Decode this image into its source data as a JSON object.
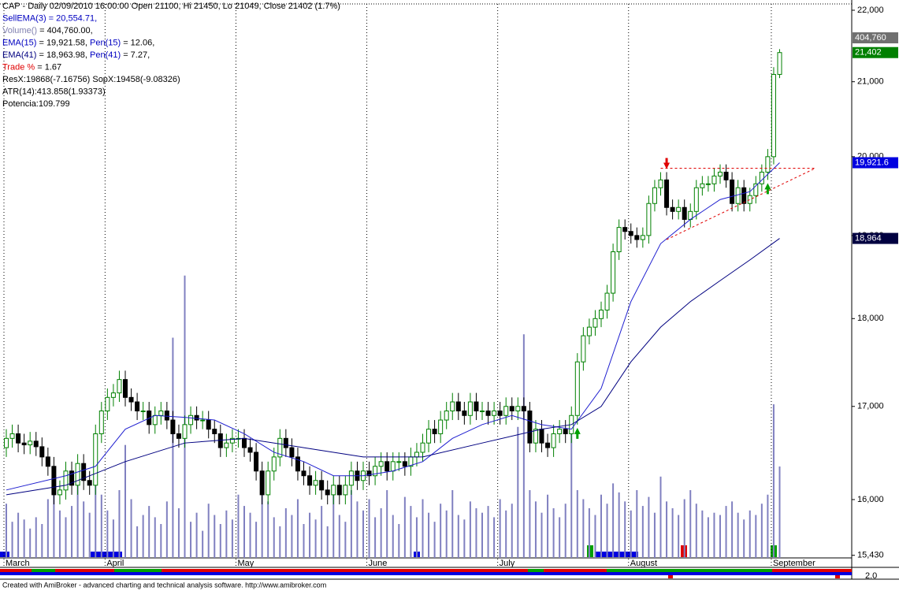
{
  "chart_data": {
    "type": "candlestick",
    "header": [
      [
        {
          "text": "CAP - Daily 02/09/2010 16:00:00 Open 21100, Hi 21450, Lo 21049, Close 21402 (1.7%)",
          "color": "#000000"
        }
      ],
      [
        {
          "text": "SellEMA(3) = 20,554.71,",
          "color": "#0000c0"
        }
      ],
      [
        {
          "text": "Volume()",
          "color": "#8080b0"
        },
        {
          "text": " = 404,760.00,",
          "color": "#000000"
        }
      ],
      [
        {
          "text": "EMA(15)",
          "color": "#0000c0"
        },
        {
          "text": " = 19,921.58, ",
          "color": "#000000"
        },
        {
          "text": "Pen(15)",
          "color": "#0000c0"
        },
        {
          "text": " = 12.06,",
          "color": "#000000"
        }
      ],
      [
        {
          "text": "EMA(41)",
          "color": "#000080"
        },
        {
          "text": " = 18,963.98, ",
          "color": "#000000"
        },
        {
          "text": "Pen(41)",
          "color": "#0000c0"
        },
        {
          "text": " = 7.27,",
          "color": "#000000"
        }
      ],
      [
        {
          "text": "Trade %",
          "color": "#e00000"
        },
        {
          "text": " = 1.67",
          "color": "#000000"
        }
      ],
      [
        {
          "text": "ResX:19868(-7.16756) SopX:19458(-9.08326)",
          "color": "#000000"
        }
      ],
      [
        {
          "text": "ATR(14):413.858(1.93373)",
          "color": "#000000"
        }
      ],
      [
        {
          "text": "Potencia:109.799",
          "color": "#000000"
        }
      ]
    ],
    "months": [
      {
        "label": "March",
        "bar": 0
      },
      {
        "label": "April",
        "bar": 17
      },
      {
        "label": "May",
        "bar": 39
      },
      {
        "label": "June",
        "bar": 61
      },
      {
        "label": "July",
        "bar": 83
      },
      {
        "label": "August",
        "bar": 105
      },
      {
        "label": "September",
        "bar": 129
      }
    ],
    "open": [
      16550,
      16650,
      16700,
      16600,
      16580,
      16620,
      16560,
      16450,
      16350,
      16050,
      16100,
      16300,
      16150,
      16380,
      16200,
      16150,
      16700,
      16950,
      17100,
      17150,
      17300,
      17100,
      17050,
      16950,
      16950,
      16800,
      16900,
      16950,
      16850,
      16700,
      16650,
      16800,
      16900,
      16850,
      16850,
      16750,
      16700,
      16550,
      16600,
      16650,
      16650,
      16550,
      16500,
      16300,
      16050,
      16300,
      16450,
      16650,
      16550,
      16450,
      16300,
      16250,
      16150,
      16200,
      16100,
      16050,
      16150,
      16050,
      16150,
      16300,
      16200,
      16300,
      16250,
      16350,
      16400,
      16300,
      16400,
      16400,
      16350,
      16450,
      16500,
      16600,
      16750,
      16700,
      16850,
      16950,
      17050,
      16950,
      16900,
      17050,
      16950,
      16950,
      16900,
      16950,
      16900,
      17000,
      16950,
      17000,
      16950,
      16600,
      16750,
      16600,
      16550,
      16700,
      16750,
      16700,
      16900,
      17500,
      17800,
      17900,
      18000,
      18100,
      18300,
      18800,
      19100,
      19050,
      19000,
      18950,
      19000,
      19400,
      19600,
      19700,
      19350,
      19300,
      19350,
      19200,
      19300,
      19600,
      19650,
      19650,
      19750,
      19800,
      19700,
      19400,
      19600,
      19400,
      19500,
      19650,
      19800,
      20000,
      21100
    ],
    "high": [
      16750,
      16800,
      16800,
      16700,
      16720,
      16720,
      16660,
      16550,
      16450,
      16200,
      16400,
      16400,
      16480,
      16480,
      16300,
      16800,
      17050,
      17200,
      17250,
      17400,
      17400,
      17200,
      17150,
      17050,
      17050,
      17000,
      17050,
      17050,
      16950,
      16800,
      16900,
      17000,
      17000,
      16950,
      16950,
      16850,
      16800,
      16700,
      16750,
      16750,
      16750,
      16650,
      16600,
      16400,
      16400,
      16550,
      16750,
      16750,
      16650,
      16550,
      16400,
      16350,
      16300,
      16300,
      16200,
      16250,
      16250,
      16250,
      16400,
      16400,
      16400,
      16400,
      16450,
      16500,
      16500,
      16500,
      16500,
      16500,
      16550,
      16600,
      16700,
      16850,
      16850,
      16950,
      17050,
      17150,
      17150,
      17050,
      17150,
      17150,
      17050,
      17050,
      17050,
      17050,
      17100,
      17100,
      17100,
      17100,
      17050,
      16850,
      16850,
      16700,
      16800,
      16850,
      16850,
      17000,
      17600,
      17900,
      18000,
      18100,
      18200,
      18400,
      18900,
      19200,
      19200,
      19150,
      19100,
      19100,
      19500,
      19700,
      19800,
      19800,
      19450,
      19450,
      19450,
      19400,
      19700,
      19750,
      19750,
      19850,
      19900,
      19900,
      19800,
      19700,
      19700,
      19600,
      19750,
      19900,
      20100,
      21200,
      21450
    ],
    "low": [
      16450,
      16550,
      16500,
      16480,
      16480,
      16460,
      16350,
      16250,
      15950,
      15950,
      16000,
      16050,
      16050,
      16100,
      16050,
      16050,
      16600,
      16850,
      17000,
      17050,
      17000,
      16950,
      16850,
      16850,
      16700,
      16700,
      16800,
      16750,
      16600,
      16550,
      16550,
      16700,
      16750,
      16750,
      16650,
      16600,
      16450,
      16450,
      16500,
      16550,
      16450,
      16400,
      16200,
      15950,
      15950,
      16200,
      16350,
      16450,
      16350,
      16200,
      16150,
      16050,
      16050,
      16000,
      15950,
      15950,
      15950,
      15950,
      16050,
      16100,
      16100,
      16150,
      16150,
      16250,
      16200,
      16200,
      16300,
      16250,
      16250,
      16350,
      16400,
      16500,
      16600,
      16600,
      16750,
      16850,
      16850,
      16800,
      16800,
      16850,
      16850,
      16800,
      16800,
      16800,
      16800,
      16850,
      16850,
      16850,
      16500,
      16500,
      16500,
      16450,
      16450,
      16600,
      16600,
      16600,
      16800,
      17400,
      17700,
      17800,
      17900,
      18000,
      18200,
      18700,
      18950,
      18900,
      18850,
      18850,
      18900,
      19300,
      19500,
      19250,
      19200,
      19200,
      19100,
      19100,
      19200,
      19500,
      19550,
      19550,
      19650,
      19600,
      19300,
      19300,
      19300,
      19300,
      19400,
      19550,
      19700,
      19900,
      21049
    ],
    "close": [
      16650,
      16700,
      16600,
      16580,
      16620,
      16560,
      16450,
      16350,
      16050,
      16100,
      16300,
      16150,
      16380,
      16200,
      16150,
      16700,
      16950,
      17100,
      17150,
      17300,
      17100,
      17050,
      16950,
      16950,
      16800,
      16900,
      16950,
      16850,
      16700,
      16650,
      16800,
      16900,
      16850,
      16850,
      16750,
      16700,
      16550,
      16600,
      16650,
      16650,
      16550,
      16500,
      16300,
      16050,
      16300,
      16450,
      16650,
      16550,
      16450,
      16300,
      16250,
      16150,
      16200,
      16100,
      16050,
      16150,
      16050,
      16150,
      16300,
      16200,
      16300,
      16250,
      16350,
      16400,
      16300,
      16400,
      16400,
      16350,
      16450,
      16500,
      16600,
      16750,
      16700,
      16850,
      16950,
      17050,
      16950,
      16900,
      17050,
      16950,
      16950,
      16900,
      16950,
      16900,
      17000,
      16950,
      17000,
      16950,
      16600,
      16750,
      16600,
      16550,
      16700,
      16750,
      16700,
      16900,
      17500,
      17800,
      17900,
      18000,
      18100,
      18300,
      18800,
      19100,
      19050,
      19000,
      18950,
      19000,
      19400,
      19600,
      19700,
      19350,
      19300,
      19350,
      19200,
      19300,
      19600,
      19650,
      19650,
      19750,
      19800,
      19700,
      19400,
      19600,
      19400,
      19500,
      19650,
      19800,
      20000,
      21100,
      21402
    ],
    "volume": [
      240000,
      160000,
      200000,
      170000,
      130000,
      180000,
      150000,
      260000,
      300000,
      210000,
      180000,
      230000,
      320000,
      250000,
      200000,
      330000,
      280000,
      210000,
      170000,
      300000,
      500000,
      260000,
      140000,
      190000,
      230000,
      180000,
      150000,
      250000,
      975000,
      220000,
      1250000,
      160000,
      200000,
      120000,
      240000,
      190000,
      150000,
      210000,
      170000,
      280000,
      230000,
      200000,
      160000,
      310000,
      250000,
      180000,
      140000,
      220000,
      190000,
      260000,
      150000,
      200000,
      170000,
      230000,
      140000,
      280000,
      190000,
      160000,
      300000,
      250000,
      210000,
      260000,
      180000,
      220000,
      300000,
      190000,
      150000,
      270000,
      230000,
      180000,
      260000,
      200000,
      160000,
      240000,
      210000,
      300000,
      190000,
      170000,
      250000,
      220000,
      200000,
      230000,
      180000,
      260000,
      210000,
      240000,
      580000,
      990000,
      300000,
      250000,
      200000,
      280000,
      220000,
      180000,
      240000,
      585000,
      300000,
      260000,
      220000,
      190000,
      280000,
      240000,
      330000,
      290000,
      250000,
      210000,
      300000,
      230000,
      270000,
      200000,
      360000,
      250000,
      220000,
      190000,
      260000,
      300000,
      240000,
      210000,
      180000,
      200000,
      190000,
      230000,
      250000,
      200000,
      170000,
      210000,
      190000,
      240000,
      280000,
      680000,
      404760
    ],
    "volume_lim": [
      0,
      2470000
    ],
    "ema": [
      {
        "name": "EMA(15)",
        "color": "#2020d0",
        "x": [
          0,
          10,
          15,
          20,
          25,
          30,
          35,
          40,
          45,
          50,
          55,
          60,
          65,
          70,
          75,
          80,
          85,
          90,
          95,
          100,
          105,
          110,
          115,
          120,
          125,
          130
        ],
        "values": [
          16100,
          16250,
          16350,
          16750,
          16900,
          16880,
          16850,
          16700,
          16500,
          16400,
          16250,
          16250,
          16300,
          16400,
          16650,
          16800,
          16900,
          16800,
          16750,
          17200,
          18200,
          18900,
          19200,
          19450,
          19550,
          19921.58
        ]
      },
      {
        "name": "EMA(41)",
        "color": "#000080",
        "x": [
          0,
          10,
          20,
          30,
          40,
          50,
          60,
          70,
          80,
          90,
          95,
          100,
          105,
          110,
          115,
          120,
          125,
          130
        ],
        "values": [
          16050,
          16150,
          16400,
          16600,
          16650,
          16550,
          16450,
          16450,
          16600,
          16750,
          16800,
          17000,
          17500,
          17900,
          18200,
          18450,
          18700,
          18963.98
        ]
      }
    ],
    "levels": [
      {
        "x": [
          110,
          136
        ],
        "values": [
          19850,
          19850
        ]
      },
      {
        "x": [
          111,
          136
        ],
        "values": [
          18950,
          19850
        ]
      }
    ],
    "buy_signals": [
      96,
      128
    ],
    "sell_signals": [
      111
    ],
    "ylim": [
      15404,
      22147
    ],
    "log_scale": true,
    "yticks": [
      {
        "value": 15430,
        "label": "15,430"
      },
      {
        "value": 16000,
        "label": "16,000"
      },
      {
        "value": 17000,
        "label": "17,000"
      },
      {
        "value": 18000,
        "label": "18,000"
      },
      {
        "value": 19000,
        "label": "19,000"
      },
      {
        "value": 20000,
        "label": "20,000"
      },
      {
        "value": 21000,
        "label": "21,000"
      },
      {
        "value": 22000,
        "label": "22,000"
      }
    ],
    "price_boxes": [
      {
        "label": "21,402",
        "value": 21402,
        "color": "#008000"
      },
      {
        "label": "19,921.6",
        "value": 19921.6,
        "color": "#0000e0"
      },
      {
        "label": "18,964",
        "value": 18964,
        "color": "#000040"
      }
    ],
    "volume_box": {
      "label": "404,760",
      "value": 404760,
      "color": "#707070"
    },
    "indicator_label": "2.0",
    "footer": "Created with AmiBroker - advanced charting and technical analysis software. http://www.amibroker.com",
    "up_color": "#008000",
    "down_color": "#000000",
    "volume_color": "#8080c0"
  }
}
